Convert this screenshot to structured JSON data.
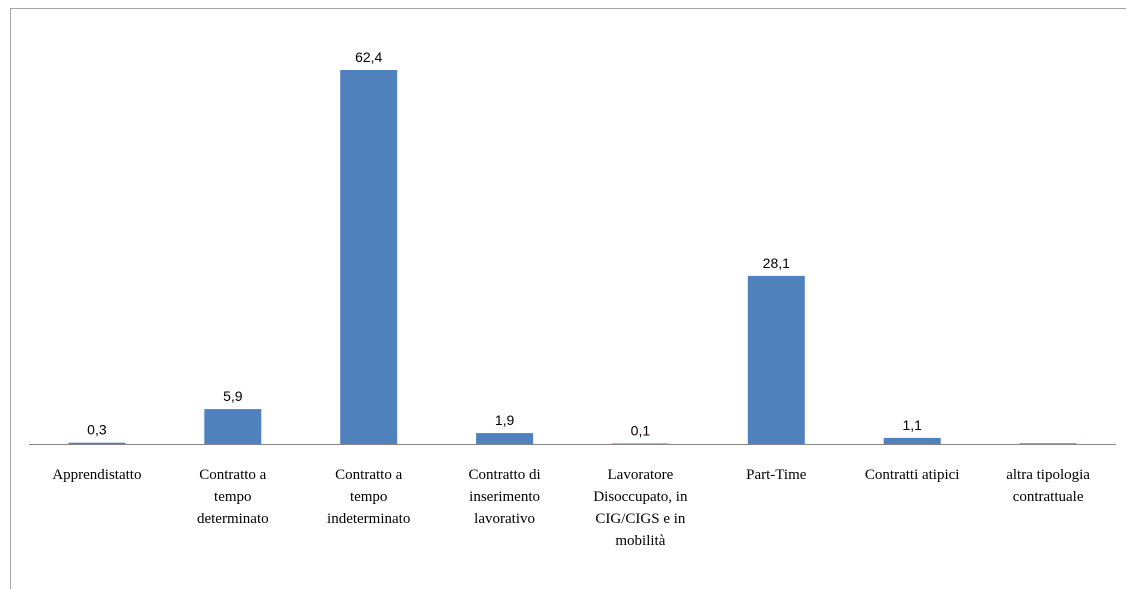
{
  "chart_data": {
    "type": "bar",
    "categories": [
      [
        "Apprendistatto"
      ],
      [
        "Contratto a",
        "tempo",
        "determinato"
      ],
      [
        "Contratto a",
        "tempo",
        "indeterminato"
      ],
      [
        "Contratto di",
        "inserimento",
        "lavorativo"
      ],
      [
        "Lavoratore",
        "Disoccupato, in",
        "CIG/CIGS e in",
        "mobilità"
      ],
      [
        "Part-Time"
      ],
      [
        "Contratti atipici"
      ],
      [
        "altra tipologia",
        "contrattuale"
      ]
    ],
    "values": [
      0.3,
      5.9,
      62.4,
      1.9,
      0.1,
      28.1,
      1.1,
      0.2
    ],
    "data_labels": [
      "0,3",
      "5,9",
      "62,4",
      "1,9",
      "0,1",
      "28,1",
      "1,1",
      ""
    ],
    "title": "",
    "xlabel": "",
    "ylabel": "",
    "ylim": [
      0,
      62.4
    ],
    "grid": false,
    "legend": "none",
    "colors": {
      "bar": "#4f81bd",
      "axis": "#868686",
      "frame": "#a6a6a6"
    }
  }
}
